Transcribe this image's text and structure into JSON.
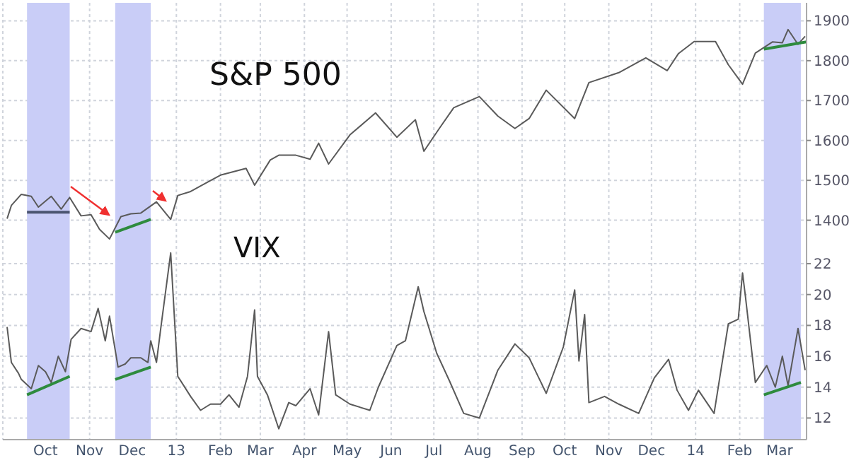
{
  "chart_data": {
    "type": "line",
    "grid": true,
    "xlim": [
      "2012-09-01",
      "2014-03-20"
    ],
    "xticks": [
      {
        "value": "2012-10-01",
        "label": "Oct"
      },
      {
        "value": "2012-11-01",
        "label": "Nov"
      },
      {
        "value": "2012-12-01",
        "label": "Dec"
      },
      {
        "value": "2013-01-01",
        "label": "13"
      },
      {
        "value": "2013-02-01",
        "label": "Feb"
      },
      {
        "value": "2013-03-01",
        "label": "Mar"
      },
      {
        "value": "2013-04-01",
        "label": "Apr"
      },
      {
        "value": "2013-05-01",
        "label": "May"
      },
      {
        "value": "2013-06-01",
        "label": "Jun"
      },
      {
        "value": "2013-07-01",
        "label": "Jul"
      },
      {
        "value": "2013-08-01",
        "label": "Aug"
      },
      {
        "value": "2013-09-01",
        "label": "Sep"
      },
      {
        "value": "2013-10-01",
        "label": "Oct"
      },
      {
        "value": "2013-11-01",
        "label": "Nov"
      },
      {
        "value": "2013-12-01",
        "label": "Dec"
      },
      {
        "value": "2014-01-01",
        "label": "14"
      },
      {
        "value": "2014-02-01",
        "label": "Feb"
      },
      {
        "value": "2014-03-01",
        "label": "Mar"
      }
    ],
    "ylim": [
      850,
      1945
    ],
    "yticks": [
      1400,
      1500,
      1600,
      1700,
      1800,
      1900
    ],
    "y2lim": [
      10.6,
      38.9
    ],
    "y2ticks": [
      12,
      14,
      16,
      18,
      20,
      22
    ],
    "bands": [
      {
        "axis": "x",
        "from": "2012-09-18",
        "to": "2012-10-18",
        "color": "#c9cdf7"
      },
      {
        "axis": "x",
        "from": "2012-11-19",
        "to": "2012-12-14",
        "color": "#c9cdf7"
      },
      {
        "axis": "x",
        "from": "2014-02-18",
        "to": "2014-03-16",
        "color": "#c9cdf7"
      }
    ],
    "series": [
      {
        "name": "S&P 500",
        "color": "#5a5a5a",
        "x": [
          "2012-09-04",
          "2012-09-07",
          "2012-09-14",
          "2012-09-21",
          "2012-09-26",
          "2012-10-05",
          "2012-10-12",
          "2012-10-18",
          "2012-10-26",
          "2012-11-02",
          "2012-11-08",
          "2012-11-15",
          "2012-11-23",
          "2012-11-30",
          "2012-12-07",
          "2012-12-18",
          "2012-12-28",
          "2013-01-02",
          "2013-01-11",
          "2013-01-18",
          "2013-02-01",
          "2013-02-19",
          "2013-02-25",
          "2013-03-08",
          "2013-03-14",
          "2013-03-26",
          "2013-04-05",
          "2013-04-11",
          "2013-04-18",
          "2013-05-03",
          "2013-05-21",
          "2013-06-05",
          "2013-06-18",
          "2013-06-24",
          "2013-07-05",
          "2013-07-15",
          "2013-08-02",
          "2013-08-15",
          "2013-08-27",
          "2013-09-06",
          "2013-09-18",
          "2013-10-08",
          "2013-10-18",
          "2013-11-08",
          "2013-11-27",
          "2013-12-12",
          "2013-12-20",
          "2013-12-31",
          "2014-01-15",
          "2014-01-24",
          "2014-02-03",
          "2014-02-12",
          "2014-02-24",
          "2014-03-03",
          "2014-03-07",
          "2014-03-14",
          "2014-03-19"
        ],
        "values": [
          1404,
          1437,
          1465,
          1460,
          1433,
          1460,
          1428,
          1457,
          1411,
          1414,
          1377,
          1353,
          1409,
          1416,
          1418,
          1446,
          1402,
          1462,
          1472,
          1486,
          1513,
          1530,
          1488,
          1551,
          1563,
          1563,
          1553,
          1593,
          1541,
          1614,
          1669,
          1608,
          1652,
          1573,
          1631,
          1682,
          1710,
          1661,
          1630,
          1655,
          1726,
          1655,
          1745,
          1770,
          1807,
          1775,
          1818,
          1848,
          1848,
          1790,
          1741,
          1819,
          1847,
          1845,
          1878,
          1841,
          1861
        ]
      },
      {
        "name": "VIX",
        "axis": "y2",
        "color": "#5a5a5a",
        "x": [
          "2012-09-04",
          "2012-09-07",
          "2012-09-12",
          "2012-09-14",
          "2012-09-21",
          "2012-09-26",
          "2012-10-01",
          "2012-10-05",
          "2012-10-10",
          "2012-10-15",
          "2012-10-19",
          "2012-10-26",
          "2012-11-02",
          "2012-11-07",
          "2012-11-12",
          "2012-11-15",
          "2012-11-21",
          "2012-11-26",
          "2012-11-30",
          "2012-12-07",
          "2012-12-12",
          "2012-12-14",
          "2012-12-18",
          "2012-12-21",
          "2012-12-28",
          "2013-01-02",
          "2013-01-11",
          "2013-01-18",
          "2013-01-25",
          "2013-02-01",
          "2013-02-07",
          "2013-02-14",
          "2013-02-20",
          "2013-02-25",
          "2013-02-27",
          "2013-03-06",
          "2013-03-14",
          "2013-03-21",
          "2013-03-26",
          "2013-04-05",
          "2013-04-11",
          "2013-04-18",
          "2013-04-23",
          "2013-05-03",
          "2013-05-17",
          "2013-05-23",
          "2013-06-05",
          "2013-06-11",
          "2013-06-20",
          "2013-06-24",
          "2013-07-03",
          "2013-07-12",
          "2013-07-22",
          "2013-08-02",
          "2013-08-15",
          "2013-08-27",
          "2013-09-06",
          "2013-09-18",
          "2013-09-30",
          "2013-10-08",
          "2013-10-11",
          "2013-10-15",
          "2013-10-18",
          "2013-10-29",
          "2013-11-08",
          "2013-11-22",
          "2013-12-03",
          "2013-12-13",
          "2013-12-19",
          "2013-12-27",
          "2014-01-03",
          "2014-01-14",
          "2014-01-24",
          "2014-01-31",
          "2014-02-03",
          "2014-02-05",
          "2014-02-12",
          "2014-02-20",
          "2014-02-26",
          "2014-03-03",
          "2014-03-07",
          "2014-03-14",
          "2014-03-19"
        ],
        "values": [
          17.9,
          15.6,
          14.9,
          14.5,
          13.9,
          15.4,
          15.0,
          14.3,
          16.0,
          15.0,
          17.1,
          17.8,
          17.6,
          19.1,
          17.0,
          18.6,
          15.3,
          15.5,
          15.9,
          15.9,
          15.6,
          17.0,
          15.6,
          17.8,
          22.7,
          14.7,
          13.4,
          12.5,
          12.9,
          12.9,
          13.5,
          12.7,
          14.7,
          19.0,
          14.7,
          13.5,
          11.3,
          13.0,
          12.8,
          13.9,
          12.2,
          17.6,
          13.5,
          12.9,
          12.5,
          14.0,
          16.7,
          17.0,
          20.5,
          18.9,
          16.2,
          14.4,
          12.3,
          12.0,
          15.1,
          16.8,
          15.9,
          13.6,
          16.6,
          20.3,
          15.7,
          18.7,
          13.0,
          13.4,
          12.9,
          12.3,
          14.6,
          15.8,
          13.8,
          12.5,
          13.8,
          12.3,
          18.1,
          18.4,
          21.4,
          19.9,
          14.3,
          15.4,
          14.0,
          16.0,
          14.1,
          17.8,
          15.1
        ]
      },
      {
        "color": "#4b5570",
        "x": [
          "2012-09-18",
          "2012-10-18"
        ],
        "values": [
          1420,
          1420
        ]
      },
      {
        "color": "#2e8b3e",
        "x": [
          "2012-11-19",
          "2012-12-14"
        ],
        "values": [
          1370,
          1402
        ]
      },
      {
        "color": "#2e8b3e",
        "x": [
          "2014-02-18",
          "2014-03-20"
        ],
        "values": [
          1829,
          1847
        ]
      },
      {
        "axis": "y2",
        "color": "#2e8b3e",
        "x": [
          "2012-09-18",
          "2012-10-18"
        ],
        "values": [
          13.5,
          14.7
        ]
      },
      {
        "axis": "y2",
        "color": "#2e8b3e",
        "x": [
          "2012-11-19",
          "2012-12-14"
        ],
        "values": [
          14.5,
          15.3
        ]
      },
      {
        "axis": "y2",
        "color": "#2e8b3e",
        "x": [
          "2014-02-18",
          "2014-03-16"
        ],
        "values": [
          13.5,
          14.3
        ]
      }
    ]
  }
}
